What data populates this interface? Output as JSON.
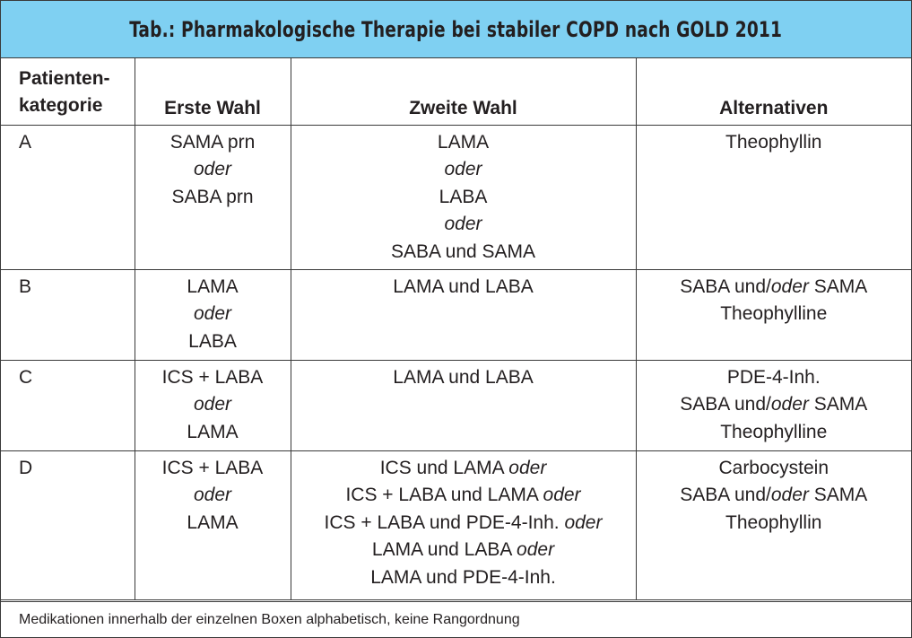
{
  "title": "Tab.: Pharmakologische Therapie bei stabiler COPD nach GOLD 2011",
  "headers": {
    "category_line1": "Patienten-",
    "category_line2": "kategorie",
    "first_choice": "Erste Wahl",
    "second_choice": "Zweite Wahl",
    "alternatives": "Alternativen"
  },
  "connectors": {
    "oder": "oder",
    "und": "und"
  },
  "rows": [
    {
      "category": "A",
      "first": [
        "SAMA  prn",
        "SABA prn"
      ],
      "second": [
        "LAMA",
        "LABA",
        "SABA und SAMA"
      ],
      "alternatives": [
        "Theophyllin"
      ]
    },
    {
      "category": "B",
      "first": [
        "LAMA",
        "LABA"
      ],
      "second": [
        "LAMA und LABA"
      ],
      "alternatives": [
        "SABA und/",
        "SAMA",
        "Theophylline"
      ]
    },
    {
      "category": "C",
      "first": [
        "ICS + LABA",
        "LAMA"
      ],
      "second": [
        "LAMA und LABA"
      ],
      "alternatives": [
        "PDE-4-Inh.",
        "SABA und/",
        "SAMA",
        "Theophylline"
      ]
    },
    {
      "category": "D",
      "first": [
        "ICS + LABA",
        "LAMA"
      ],
      "second": [
        "ICS und LAMA",
        "ICS + LABA und LAMA",
        "ICS + LABA und PDE-4-Inh.",
        "LAMA und LABA",
        "LAMA und PDE-4-Inh."
      ],
      "alternatives": [
        "Carbocystein",
        "SABA und/",
        "SAMA",
        "Theophyllin"
      ]
    }
  ],
  "footnote": "Medikationen innerhalb der einzelnen Boxen alphabetisch, keine Rangordnung",
  "colors": {
    "title_background": "#7fd0f2",
    "border": "#3a3a3a",
    "text": "#231f20"
  }
}
